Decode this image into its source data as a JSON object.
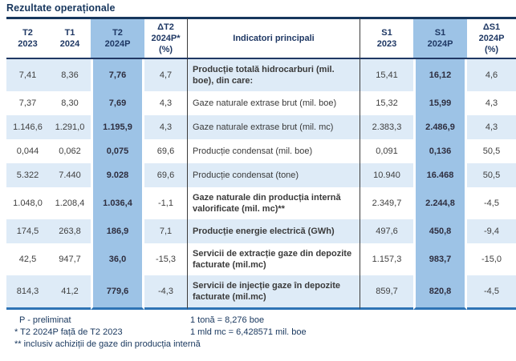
{
  "title": "Rezultate operaționale",
  "colors": {
    "highlight_column": "#9DC3E6",
    "row_band": "#DEEBF7",
    "header_text": "#1F3864",
    "top_border": "#17375D",
    "bottom_border": "#2E74B5"
  },
  "table": {
    "headers": [
      "T2\n2023",
      "T1\n2024",
      "T2\n2024P",
      "ΔT2\n2024P*\n(%)",
      "Indicatori principali",
      "S1\n2023",
      "S1\n2024P",
      "ΔS1\n2024P\n(%)"
    ],
    "rows": [
      {
        "cells": [
          "7,41",
          "8,36",
          "7,76",
          "4,7",
          "Producție totală hidrocarburi (mil. boe), din care:",
          "15,41",
          "16,12",
          "4,6"
        ],
        "emphasis": true
      },
      {
        "cells": [
          "7,37",
          "8,30",
          "7,69",
          "4,3",
          "Gaze naturale extrase brut (mil. boe)",
          "15,32",
          "15,99",
          "4,3"
        ],
        "emphasis": false
      },
      {
        "cells": [
          "1.146,6",
          "1.291,0",
          "1.195,9",
          "4,3",
          "Gaze naturale extrase brut (mil. mc)",
          "2.383,3",
          "2.486,9",
          "4,3"
        ],
        "emphasis": false
      },
      {
        "cells": [
          "0,044",
          "0,062",
          "0,075",
          "69,6",
          "Producție condensat (mil. boe)",
          "0,091",
          "0,136",
          "50,5"
        ],
        "emphasis": false
      },
      {
        "cells": [
          "5.322",
          "7.440",
          "9.028",
          "69,6",
          "Producție condensat (tone)",
          "10.940",
          "16.468",
          "50,5"
        ],
        "emphasis": false
      },
      {
        "cells": [
          "1.048,0",
          "1.208,4",
          "1.036,4",
          "-1,1",
          "Gaze naturale din producția internă valorificate (mil. mc)**",
          "2.349,7",
          "2.244,8",
          "-4,5"
        ],
        "emphasis": true
      },
      {
        "cells": [
          "174,5",
          "263,8",
          "186,9",
          "7,1",
          "Producție energie electrică (GWh)",
          "497,6",
          "450,8",
          "-9,4"
        ],
        "emphasis": true
      },
      {
        "cells": [
          "42,5",
          "947,7",
          "36,0",
          "-15,3",
          "Servicii de extracție gaze din depozite facturate (mil.mc)",
          "1.157,3",
          "983,7",
          "-15,0"
        ],
        "emphasis": true
      },
      {
        "cells": [
          "814,3",
          "41,2",
          "779,6",
          "-4,3",
          "Servicii de injecție gaze în depozite facturate (mil.mc)",
          "859,7",
          "820,8",
          "-4,5"
        ],
        "emphasis": true
      }
    ]
  },
  "footnotes": {
    "left": [
      "P - preliminat",
      "* T2 2024P față de T2 2023",
      "** inclusiv achiziții de gaze din producția internă"
    ],
    "right": [
      "1 tonă = 8,276 boe",
      "1 mld mc = 6,428571 mil. boe"
    ]
  }
}
